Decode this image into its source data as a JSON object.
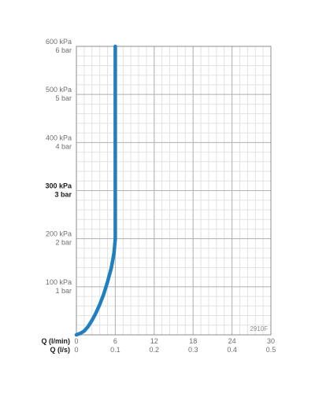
{
  "chart_data": {
    "type": "line",
    "title": "",
    "model_label": "2910F",
    "x_axis_primary": {
      "label": "Q (l/min)",
      "ticks": [
        "0",
        "6",
        "12",
        "18",
        "24",
        "30"
      ],
      "range": [
        0,
        30
      ]
    },
    "x_axis_secondary": {
      "label": "Q (l/s)",
      "ticks": [
        "0",
        "0.1",
        "0.2",
        "0.3",
        "0.4",
        "0.5"
      ],
      "range": [
        0,
        0.5
      ]
    },
    "y_axis": {
      "range": [
        0,
        600
      ],
      "unit": "kPa",
      "ticks": [
        {
          "value": 600,
          "kpa": "600 kPa",
          "bar": "6 bar",
          "bold": false
        },
        {
          "value": 500,
          "kpa": "500 kPa",
          "bar": "5 bar",
          "bold": false
        },
        {
          "value": 400,
          "kpa": "400 kPa",
          "bar": "4 bar",
          "bold": false
        },
        {
          "value": 300,
          "kpa": "300 kPa",
          "bar": "3 bar",
          "bold": true
        },
        {
          "value": 200,
          "kpa": "200 kPa",
          "bar": "2 bar",
          "bold": false
        },
        {
          "value": 100,
          "kpa": "100 kPa",
          "bar": "1 bar",
          "bold": false
        }
      ]
    },
    "grid": true,
    "series": [
      {
        "color": "#1f7fbf",
        "points": [
          {
            "x": 0,
            "y": 0
          },
          {
            "x": 0.6,
            "y": 3
          },
          {
            "x": 1.2,
            "y": 8
          },
          {
            "x": 1.8,
            "y": 17
          },
          {
            "x": 2.4,
            "y": 30
          },
          {
            "x": 3.0,
            "y": 45
          },
          {
            "x": 3.6,
            "y": 63
          },
          {
            "x": 4.2,
            "y": 84
          },
          {
            "x": 4.8,
            "y": 110
          },
          {
            "x": 5.4,
            "y": 140
          },
          {
            "x": 5.8,
            "y": 170
          },
          {
            "x": 6.0,
            "y": 200
          },
          {
            "x": 6.0,
            "y": 300
          },
          {
            "x": 6.0,
            "y": 400
          },
          {
            "x": 6.0,
            "y": 500
          },
          {
            "x": 6.0,
            "y": 600
          }
        ]
      }
    ]
  }
}
